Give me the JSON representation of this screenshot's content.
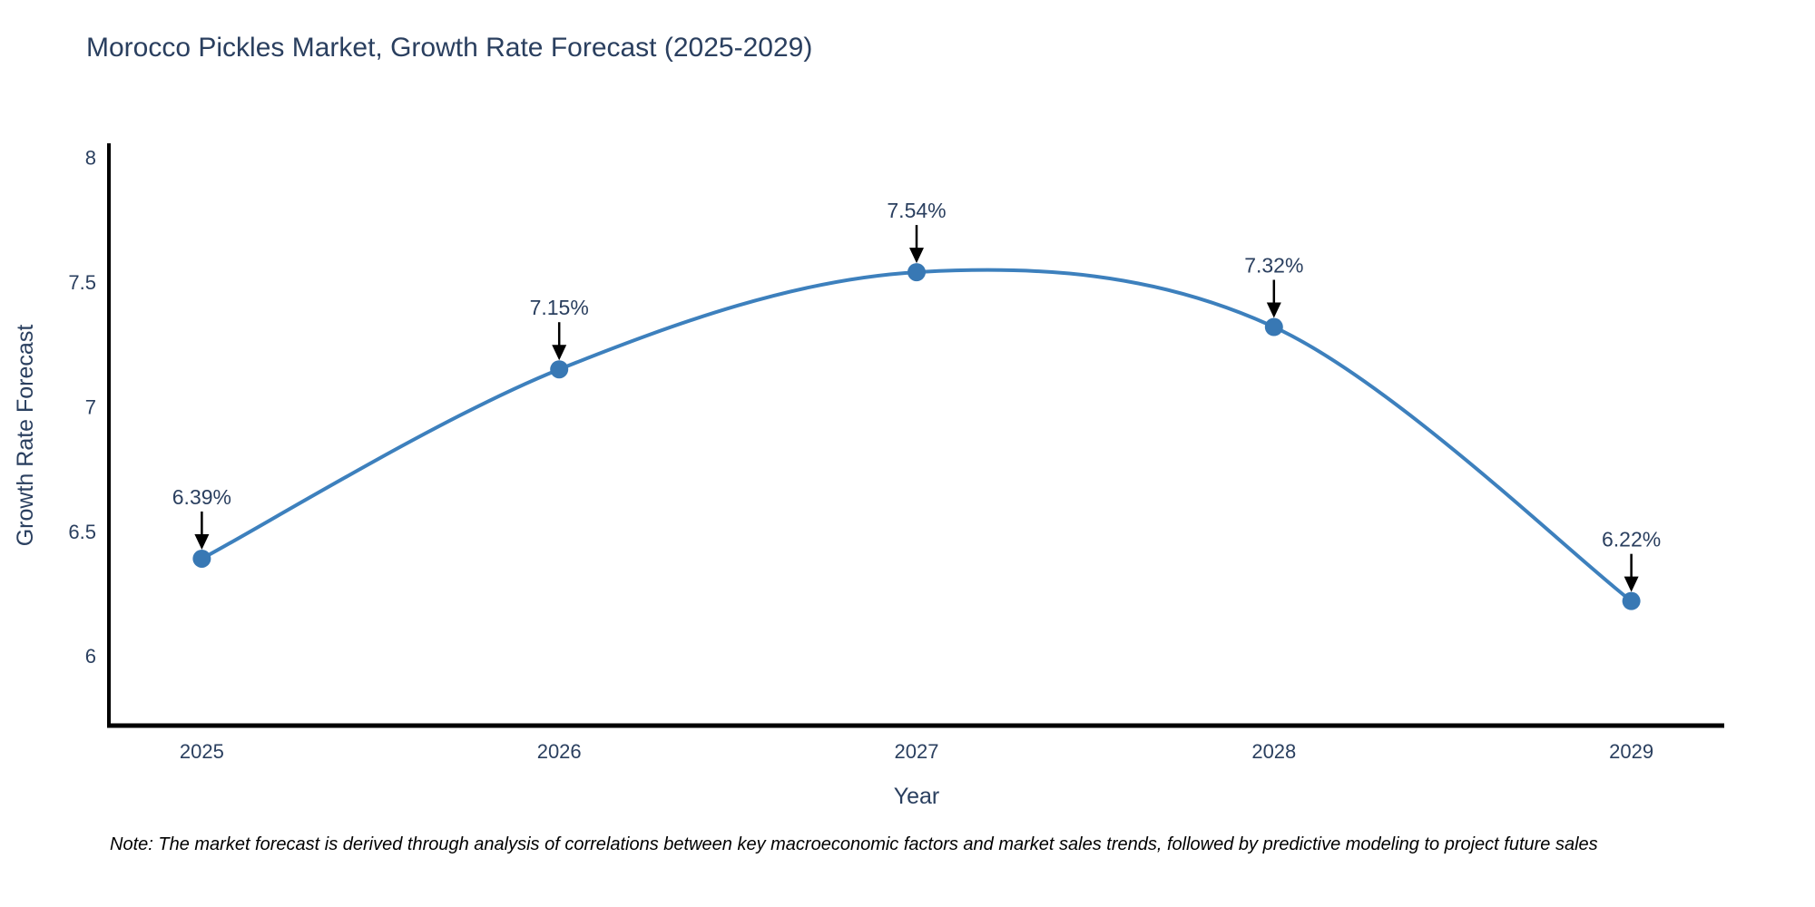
{
  "title": "Morocco Pickles Market, Growth Rate Forecast (2025-2029)",
  "note": "Note: The market forecast is derived through analysis of correlations between key macroeconomic factors and market sales trends, followed by predictive modeling to project future sales",
  "chart_data": {
    "type": "line",
    "title": "Morocco Pickles Market, Growth Rate Forecast (2025-2029)",
    "x": [
      2025,
      2026,
      2027,
      2028,
      2029
    ],
    "values": [
      6.39,
      7.15,
      7.54,
      7.32,
      6.22
    ],
    "point_labels": [
      "6.39%",
      "7.15%",
      "7.54%",
      "7.32%",
      "6.22%"
    ],
    "xlabel": "Year",
    "ylabel": "Growth Rate Forecast",
    "x_tick_labels": [
      "2025",
      "2026",
      "2027",
      "2028",
      "2029"
    ],
    "y_ticks": [
      6,
      6.5,
      7,
      7.5,
      8
    ],
    "y_tick_labels": [
      "6",
      "6.5",
      "7",
      "7.5",
      "8"
    ],
    "xlim": [
      2024.74,
      2029.26
    ],
    "ylim": [
      5.72,
      8.05
    ],
    "line_shape": "spline",
    "grid": false,
    "legend": false,
    "colors": {
      "line": "#3d80bd",
      "marker": "#3878b4",
      "axis": "#000000",
      "text": "#2a3f5f",
      "annotation_text": "#2a3f5f",
      "annotation_arrow": "#000000",
      "background": "#ffffff"
    }
  }
}
